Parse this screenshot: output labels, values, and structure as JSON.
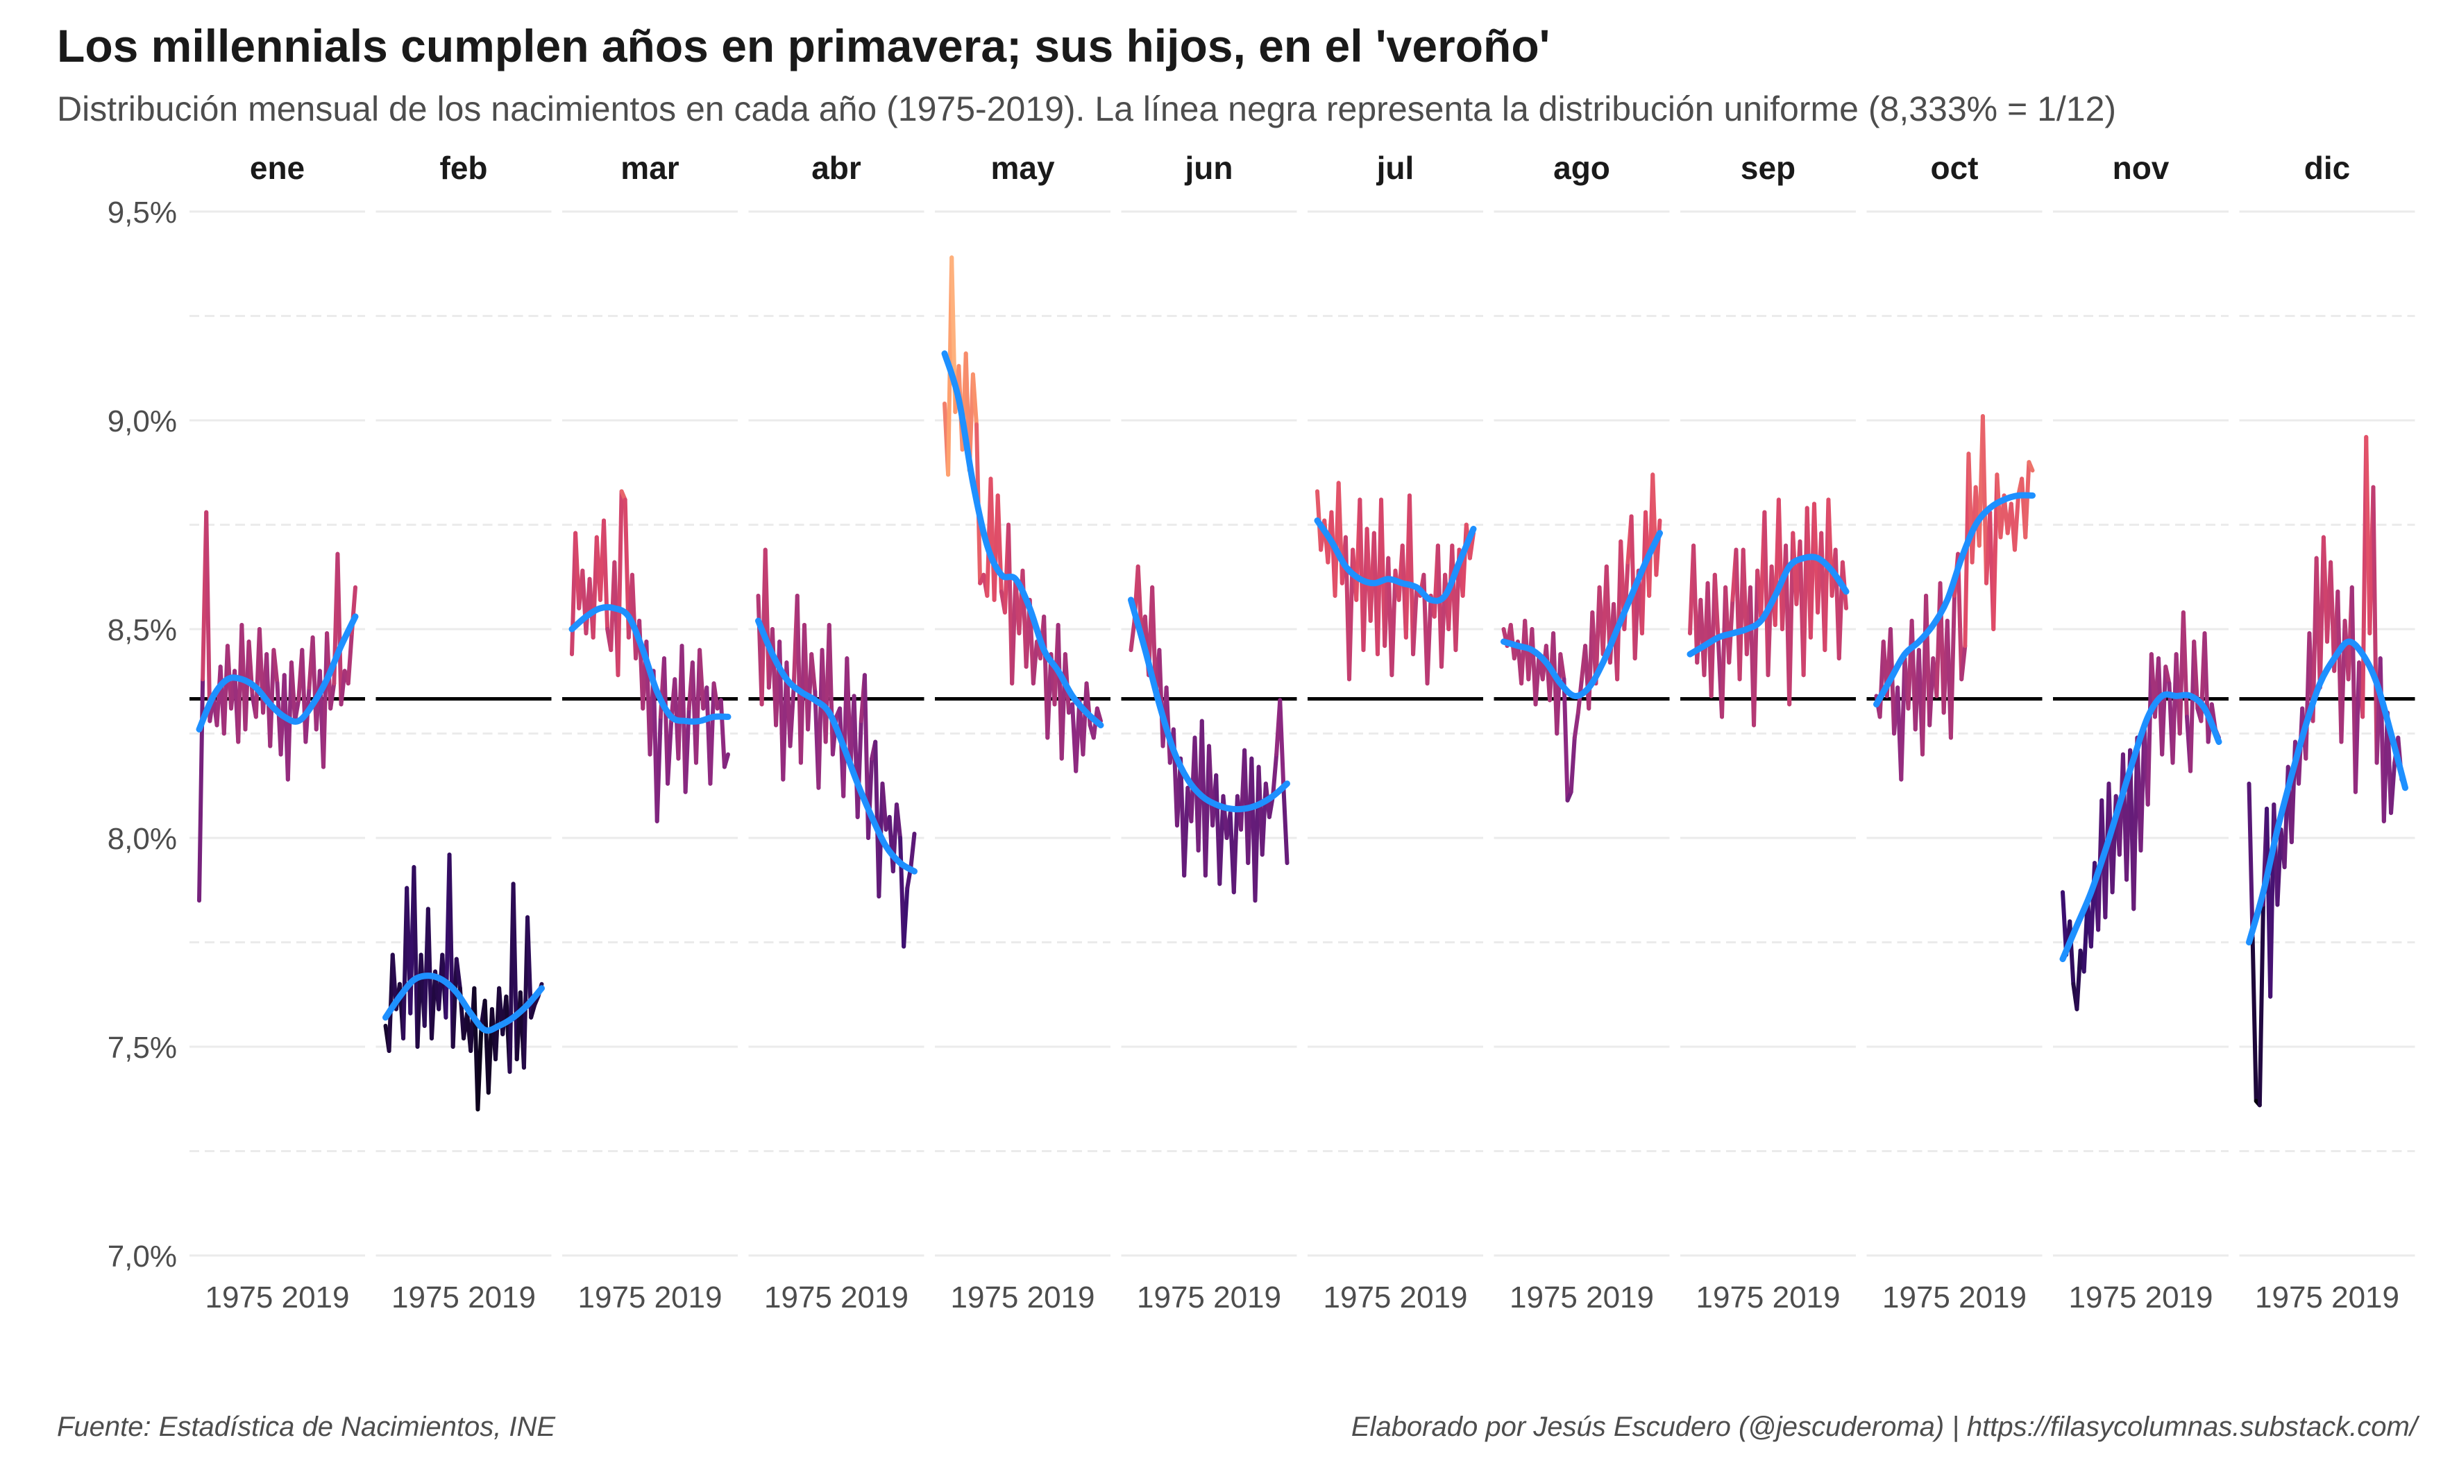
{
  "title": "Los millennials cumplen años en primavera; sus hijos, en el 'veroño'",
  "subtitle": "Distribución mensual de los nacimientos en cada año (1975-2019). La línea negra representa la distribución uniforme (8,333% = 1/12)",
  "caption_left": "Fuente: Estadística de Nacimientos, INE",
  "caption_right": "Elaborado por Jesús Escudero (@jescuderoma) | https://filasycolumnas.substack.com/",
  "colors": {
    "trend": "#1e90ff",
    "reference_line": "#000000",
    "gridline": "#ebebeb",
    "palette": [
      "#000004",
      "#3b0f70",
      "#8c2981",
      "#de4968",
      "#fe9f6d",
      "#fcfdbf"
    ]
  },
  "chart_data": {
    "type": "line",
    "facet_by": "month",
    "x_range": [
      1975,
      2019
    ],
    "x_tick_labels": [
      "1975",
      "2019"
    ],
    "y_range": [
      7.0,
      9.5
    ],
    "y_ticks": [
      7.0,
      7.5,
      8.0,
      8.5,
      9.0,
      9.5
    ],
    "y_tick_labels": [
      "7,0%",
      "7,5%",
      "8,0%",
      "8,5%",
      "9,0%",
      "9,5%"
    ],
    "reference_value": 8.333,
    "grid": true,
    "line_color_scale": "magma (by value)",
    "smooth_color": "#1e90ff",
    "panels": [
      {
        "label": "ene",
        "values": [
          7.85,
          8.38,
          8.78,
          8.28,
          8.34,
          8.27,
          8.41,
          8.25,
          8.46,
          8.31,
          8.4,
          8.23,
          8.51,
          8.26,
          8.47,
          8.34,
          8.29,
          8.5,
          8.3,
          8.44,
          8.22,
          8.45,
          8.37,
          8.2,
          8.39,
          8.14,
          8.42,
          8.28,
          8.33,
          8.45,
          8.23,
          8.36,
          8.48,
          8.26,
          8.4,
          8.17,
          8.49,
          8.31,
          8.37,
          8.68,
          8.32,
          8.4,
          8.37,
          8.49,
          8.6
        ],
        "trend": [
          8.26,
          8.34,
          8.38,
          8.38,
          8.36,
          8.32,
          8.29,
          8.28,
          8.32,
          8.38,
          8.46,
          8.53
        ]
      },
      {
        "label": "feb",
        "values": [
          7.55,
          7.49,
          7.72,
          7.59,
          7.65,
          7.52,
          7.88,
          7.58,
          7.93,
          7.5,
          7.72,
          7.55,
          7.83,
          7.52,
          7.68,
          7.59,
          7.72,
          7.57,
          7.96,
          7.5,
          7.71,
          7.64,
          7.52,
          7.58,
          7.49,
          7.64,
          7.35,
          7.55,
          7.61,
          7.39,
          7.59,
          7.47,
          7.64,
          7.53,
          7.62,
          7.44,
          7.89,
          7.47,
          7.63,
          7.45,
          7.81,
          7.57,
          7.6,
          7.62,
          7.65
        ],
        "trend": [
          7.57,
          7.62,
          7.66,
          7.67,
          7.66,
          7.63,
          7.58,
          7.54,
          7.55,
          7.57,
          7.6,
          7.64
        ]
      },
      {
        "label": "mar",
        "values": [
          8.44,
          8.73,
          8.55,
          8.64,
          8.49,
          8.62,
          8.48,
          8.72,
          8.57,
          8.76,
          8.5,
          8.45,
          8.66,
          8.39,
          8.83,
          8.81,
          8.48,
          8.63,
          8.43,
          8.52,
          8.31,
          8.47,
          8.2,
          8.4,
          8.04,
          8.29,
          8.43,
          8.13,
          8.28,
          8.38,
          8.19,
          8.46,
          8.11,
          8.31,
          8.42,
          8.18,
          8.45,
          8.31,
          8.36,
          8.13,
          8.37,
          8.31,
          8.33,
          8.17,
          8.2
        ],
        "trend": [
          8.5,
          8.53,
          8.55,
          8.55,
          8.53,
          8.45,
          8.35,
          8.29,
          8.28,
          8.28,
          8.29,
          8.29
        ]
      },
      {
        "label": "abr",
        "values": [
          8.58,
          8.32,
          8.69,
          8.36,
          8.5,
          8.27,
          8.47,
          8.14,
          8.42,
          8.22,
          8.36,
          8.58,
          8.18,
          8.51,
          8.26,
          8.44,
          8.35,
          8.12,
          8.45,
          8.23,
          8.51,
          8.2,
          8.29,
          8.31,
          8.1,
          8.43,
          8.17,
          8.34,
          8.05,
          8.28,
          8.39,
          8.0,
          8.19,
          8.23,
          7.86,
          8.13,
          8.02,
          8.05,
          7.92,
          8.08,
          8.0,
          7.74,
          7.88,
          7.93,
          8.01
        ],
        "trend": [
          8.52,
          8.44,
          8.38,
          8.35,
          8.33,
          8.3,
          8.22,
          8.13,
          8.05,
          7.98,
          7.94,
          7.92
        ]
      },
      {
        "label": "may",
        "values": [
          9.04,
          8.87,
          9.39,
          9.02,
          9.13,
          8.93,
          9.16,
          8.88,
          9.11,
          8.99,
          8.61,
          8.63,
          8.58,
          8.86,
          8.57,
          8.82,
          8.59,
          8.54,
          8.75,
          8.37,
          8.62,
          8.49,
          8.64,
          8.41,
          8.57,
          8.37,
          8.47,
          8.43,
          8.53,
          8.24,
          8.44,
          8.32,
          8.51,
          8.19,
          8.44,
          8.3,
          8.32,
          8.16,
          8.33,
          8.2,
          8.37,
          8.27,
          8.24,
          8.31,
          8.28
        ],
        "trend": [
          9.16,
          9.05,
          8.85,
          8.7,
          8.63,
          8.62,
          8.55,
          8.45,
          8.4,
          8.34,
          8.3,
          8.27
        ]
      },
      {
        "label": "jun",
        "values": [
          8.45,
          8.52,
          8.65,
          8.48,
          8.53,
          8.39,
          8.6,
          8.34,
          8.45,
          8.22,
          8.36,
          8.18,
          8.26,
          8.03,
          8.19,
          7.91,
          8.12,
          8.04,
          8.24,
          7.97,
          8.28,
          7.91,
          8.22,
          8.03,
          8.15,
          7.89,
          8.1,
          8.0,
          8.06,
          7.87,
          8.1,
          8.02,
          8.21,
          7.94,
          8.19,
          7.85,
          8.17,
          7.96,
          8.13,
          8.05,
          8.1,
          8.2,
          8.33,
          8.12,
          7.94
        ],
        "trend": [
          8.57,
          8.45,
          8.32,
          8.21,
          8.14,
          8.1,
          8.08,
          8.07,
          8.07,
          8.08,
          8.1,
          8.13
        ]
      },
      {
        "label": "jul",
        "values": [
          8.83,
          8.69,
          8.76,
          8.66,
          8.78,
          8.58,
          8.85,
          8.61,
          8.72,
          8.38,
          8.69,
          8.57,
          8.81,
          8.45,
          8.74,
          8.52,
          8.73,
          8.44,
          8.81,
          8.46,
          8.67,
          8.39,
          8.64,
          8.57,
          8.7,
          8.48,
          8.82,
          8.44,
          8.6,
          8.58,
          8.63,
          8.37,
          8.58,
          8.53,
          8.7,
          8.41,
          8.63,
          8.5,
          8.7,
          8.45,
          8.69,
          8.58,
          8.75,
          8.67,
          8.73
        ],
        "trend": [
          8.76,
          8.71,
          8.65,
          8.62,
          8.61,
          8.62,
          8.61,
          8.6,
          8.57,
          8.58,
          8.66,
          8.74
        ]
      },
      {
        "label": "ago",
        "values": [
          8.5,
          8.46,
          8.51,
          8.43,
          8.47,
          8.37,
          8.52,
          8.38,
          8.5,
          8.32,
          8.44,
          8.38,
          8.46,
          8.33,
          8.49,
          8.25,
          8.44,
          8.38,
          8.09,
          8.11,
          8.24,
          8.3,
          8.38,
          8.46,
          8.31,
          8.54,
          8.37,
          8.6,
          8.44,
          8.65,
          8.42,
          8.56,
          8.38,
          8.71,
          8.5,
          8.66,
          8.77,
          8.43,
          8.64,
          8.49,
          8.78,
          8.58,
          8.87,
          8.63,
          8.76
        ],
        "trend": [
          8.47,
          8.46,
          8.45,
          8.42,
          8.37,
          8.34,
          8.36,
          8.42,
          8.5,
          8.58,
          8.66,
          8.73
        ]
      },
      {
        "label": "sep",
        "values": [
          8.49,
          8.7,
          8.42,
          8.57,
          8.39,
          8.61,
          8.34,
          8.63,
          8.47,
          8.29,
          8.6,
          8.42,
          8.57,
          8.69,
          8.38,
          8.69,
          8.44,
          8.6,
          8.27,
          8.64,
          8.53,
          8.78,
          8.39,
          8.65,
          8.51,
          8.81,
          8.5,
          8.7,
          8.32,
          8.73,
          8.56,
          8.71,
          8.39,
          8.79,
          8.48,
          8.8,
          8.54,
          8.73,
          8.45,
          8.81,
          8.58,
          8.69,
          8.43,
          8.66,
          8.55
        ],
        "trend": [
          8.44,
          8.46,
          8.48,
          8.49,
          8.5,
          8.52,
          8.58,
          8.65,
          8.67,
          8.67,
          8.64,
          8.59
        ]
      },
      {
        "label": "oct",
        "values": [
          8.34,
          8.29,
          8.47,
          8.34,
          8.5,
          8.25,
          8.36,
          8.14,
          8.43,
          8.31,
          8.52,
          8.26,
          8.45,
          8.2,
          8.58,
          8.27,
          8.43,
          8.34,
          8.61,
          8.3,
          8.52,
          8.24,
          8.58,
          8.68,
          8.38,
          8.46,
          8.92,
          8.66,
          8.84,
          8.7,
          9.01,
          8.61,
          8.78,
          8.5,
          8.87,
          8.72,
          8.82,
          8.73,
          8.8,
          8.69,
          8.82,
          8.86,
          8.72,
          8.9,
          8.88
        ],
        "trend": [
          8.32,
          8.38,
          8.44,
          8.47,
          8.51,
          8.57,
          8.67,
          8.75,
          8.79,
          8.81,
          8.82,
          8.82
        ]
      },
      {
        "label": "nov",
        "values": [
          7.87,
          7.72,
          7.8,
          7.65,
          7.59,
          7.73,
          7.68,
          7.85,
          7.74,
          7.94,
          7.78,
          8.09,
          7.81,
          8.13,
          7.87,
          8.1,
          7.96,
          8.2,
          7.9,
          8.21,
          7.83,
          8.24,
          7.97,
          8.27,
          8.08,
          8.44,
          8.29,
          8.43,
          8.2,
          8.41,
          8.37,
          8.18,
          8.44,
          8.25,
          8.54,
          8.29,
          8.16,
          8.47,
          8.31,
          8.28,
          8.49,
          8.23,
          8.32,
          8.26,
          8.24
        ],
        "trend": [
          7.71,
          7.79,
          7.87,
          7.97,
          8.08,
          8.19,
          8.29,
          8.34,
          8.34,
          8.34,
          8.31,
          8.23
        ]
      },
      {
        "label": "dic",
        "values": [
          8.13,
          7.76,
          7.37,
          7.36,
          7.84,
          8.07,
          7.62,
          8.08,
          7.84,
          8.02,
          7.93,
          8.17,
          7.99,
          8.23,
          8.13,
          8.31,
          8.19,
          8.49,
          8.28,
          8.67,
          8.36,
          8.72,
          8.47,
          8.66,
          8.4,
          8.59,
          8.23,
          8.52,
          8.38,
          8.6,
          8.11,
          8.42,
          8.29,
          8.96,
          8.49,
          8.84,
          8.18,
          8.43,
          8.04,
          8.3,
          8.06,
          8.18,
          8.24,
          8.14,
          8.12
        ],
        "trend": [
          7.75,
          7.87,
          8.02,
          8.15,
          8.27,
          8.37,
          8.43,
          8.47,
          8.44,
          8.37,
          8.25,
          8.12
        ]
      }
    ]
  }
}
